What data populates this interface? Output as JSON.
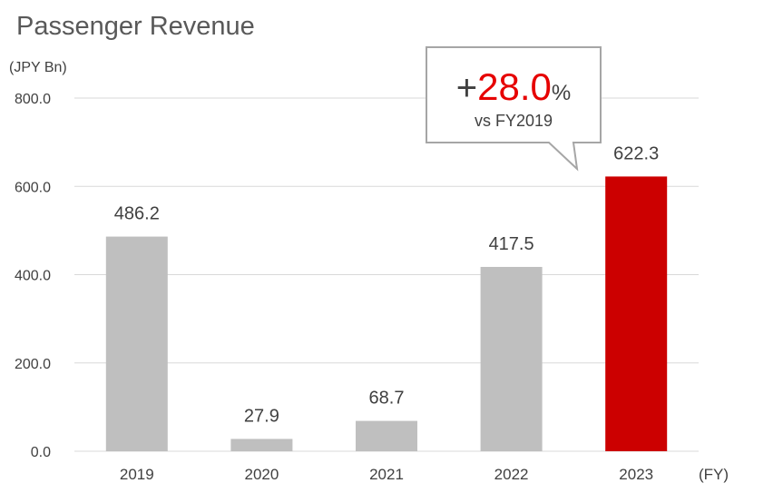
{
  "chart_data": {
    "type": "bar",
    "title": "Passenger Revenue",
    "ylabel": "(JPY Bn)",
    "xlabel": "(FY)",
    "categories": [
      "2019",
      "2020",
      "2021",
      "2022",
      "2023"
    ],
    "values": [
      486.2,
      27.9,
      68.7,
      417.5,
      622.3
    ],
    "value_labels": [
      "486.2",
      "27.9",
      "68.7",
      "417.5",
      "622.3"
    ],
    "ylim": [
      0,
      800
    ],
    "yticks": [
      "0.0",
      "200.0",
      "400.0",
      "600.0",
      "800.0"
    ],
    "grid": true,
    "colors": {
      "default_bar": "#bfbfbf",
      "highlight_bar": "#cc0000",
      "grid": "#d9d9d9",
      "callout_accent": "#e60000"
    },
    "highlight_index": 4,
    "annotation": {
      "sign": "+",
      "value": "28.0",
      "unit": "%",
      "subtext": "vs FY2019"
    }
  }
}
